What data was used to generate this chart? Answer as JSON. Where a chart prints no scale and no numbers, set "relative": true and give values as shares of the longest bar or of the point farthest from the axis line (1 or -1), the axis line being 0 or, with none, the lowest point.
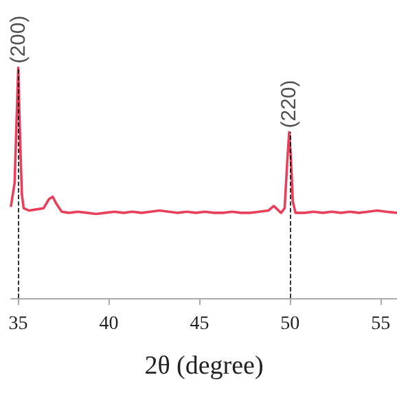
{
  "chart_data": {
    "type": "line",
    "relative": true,
    "xlabel": "2θ (degree)",
    "xlim": [
      34.6,
      55.9
    ],
    "xticks": [
      35,
      40,
      45,
      50,
      55
    ],
    "grid": false,
    "marker": "none",
    "line_style": "solid",
    "tick_labels": "x",
    "series": [
      {
        "color": "#e8405a",
        "x": [
          34.6,
          34.8,
          34.9,
          35.0,
          35.1,
          35.2,
          35.3,
          35.6,
          36.0,
          36.4,
          36.7,
          36.9,
          37.1,
          37.4,
          37.8,
          38.3,
          38.8,
          39.3,
          39.8,
          40.3,
          40.8,
          41.3,
          41.8,
          42.3,
          42.8,
          43.3,
          43.8,
          44.3,
          44.8,
          45.3,
          45.8,
          46.3,
          46.8,
          47.3,
          47.8,
          48.3,
          48.8,
          49.1,
          49.3,
          49.5,
          49.7,
          49.85,
          49.95,
          50.05,
          50.15,
          50.3,
          50.8,
          51.3,
          51.8,
          52.3,
          52.8,
          53.3,
          53.8,
          54.3,
          54.8,
          55.3,
          55.9
        ],
        "values": [
          0.4,
          0.5,
          0.75,
          1.0,
          0.7,
          0.45,
          0.39,
          0.38,
          0.385,
          0.39,
          0.43,
          0.44,
          0.41,
          0.375,
          0.37,
          0.375,
          0.37,
          0.365,
          0.37,
          0.375,
          0.37,
          0.375,
          0.37,
          0.375,
          0.38,
          0.375,
          0.37,
          0.375,
          0.37,
          0.375,
          0.37,
          0.37,
          0.375,
          0.37,
          0.37,
          0.375,
          0.38,
          0.4,
          0.385,
          0.37,
          0.39,
          0.6,
          0.72,
          0.6,
          0.42,
          0.37,
          0.37,
          0.375,
          0.37,
          0.375,
          0.37,
          0.375,
          0.37,
          0.375,
          0.38,
          0.375,
          0.37
        ]
      }
    ],
    "annotations": [
      {
        "text": "(200)",
        "x": 35.0,
        "y": 1.0
      },
      {
        "text": "(220)",
        "x": 49.95,
        "y": 0.72
      }
    ],
    "ref_lines": [
      {
        "axis": "x",
        "value": 35,
        "color": "#000000",
        "line_style": "dashed"
      },
      {
        "axis": "x",
        "value": 50,
        "color": "#000000",
        "line_style": "dashed"
      }
    ]
  }
}
